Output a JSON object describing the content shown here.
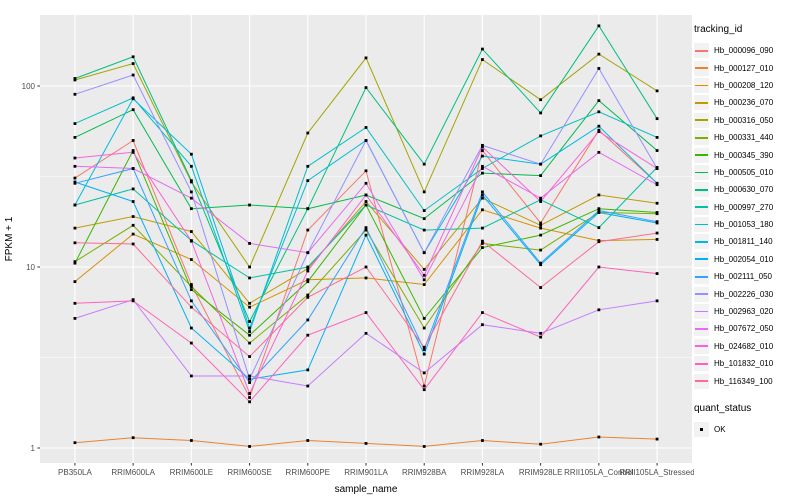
{
  "chart_data": {
    "type": "line",
    "title": "",
    "xlabel": "sample_name",
    "ylabel": "FPKM + 1",
    "y_scale": "log10",
    "y_ticks": [
      1,
      10,
      100
    ],
    "y_tick_labels": [
      "1",
      "10",
      "100"
    ],
    "y_minor_ticks": [
      3.162,
      31.62
    ],
    "ylim": [
      0.83,
      245
    ],
    "grid": true,
    "panel_bg": "#EBEBEB",
    "grid_color": "#FFFFFF",
    "axis_text_color": "#4D4D4D",
    "point_shape": "filled-square",
    "point_color": "#000000",
    "categories": [
      "PB350LA",
      "RRIM600LA",
      "RRIM600LE",
      "RRIM600SE",
      "RRIM600PE",
      "RRIM901LA",
      "RRIM928BA",
      "RRIM928LA",
      "RRIM928LE",
      "RRII105LA_Control",
      "RRII105LA_Stressed"
    ],
    "legend": {
      "color_title": "tracking_id",
      "shape_title": "quant_status",
      "shape_label": "OK"
    },
    "series": [
      {
        "name": "Hb_000096_090",
        "color": "#F8766D",
        "values": [
          31,
          50,
          8.0,
          1.9,
          16,
          34,
          2.2,
          44,
          17.5,
          57,
          29
        ]
      },
      {
        "name": "Hb_000127_010",
        "color": "#EA8331",
        "values": [
          1.07,
          1.14,
          1.1,
          1.02,
          1.1,
          1.06,
          1.02,
          1.1,
          1.05,
          1.15,
          1.12
        ]
      },
      {
        "name": "Hb_000208_120",
        "color": "#D89000",
        "values": [
          8.3,
          15.2,
          11,
          6.0,
          8.5,
          8.7,
          8.0,
          20.7,
          16.4,
          14,
          14.2
        ]
      },
      {
        "name": "Hb_000236_070",
        "color": "#C09B00",
        "values": [
          16.4,
          19,
          15.7,
          6.3,
          9.8,
          23,
          9.7,
          24,
          17,
          25,
          22.5
        ]
      },
      {
        "name": "Hb_000316_050",
        "color": "#A3A500",
        "values": [
          108,
          133,
          29.5,
          10,
          55,
          143,
          26,
          140,
          84,
          150,
          94
        ]
      },
      {
        "name": "Hb_000331_440",
        "color": "#7CAE00",
        "values": [
          10.7,
          17,
          7.8,
          3.8,
          7.0,
          16,
          4.6,
          13.5,
          12.4,
          20,
          19.7
        ]
      },
      {
        "name": "Hb_000345_390",
        "color": "#39B600",
        "values": [
          10.5,
          44,
          7.5,
          4.2,
          8.3,
          22,
          5.2,
          12.8,
          15,
          21,
          20
        ]
      },
      {
        "name": "Hb_000505_010",
        "color": "#00BB4E",
        "values": [
          52,
          74,
          21,
          22,
          21,
          25,
          18.5,
          33,
          32,
          83,
          44
        ]
      },
      {
        "name": "Hb_000630_070",
        "color": "#00BF7D",
        "values": [
          110,
          145,
          30,
          5.0,
          21,
          98,
          37,
          160,
          71,
          215,
          66
        ]
      },
      {
        "name": "Hb_000997_270",
        "color": "#00C1A3",
        "values": [
          22,
          27,
          14,
          8.7,
          10,
          22,
          16,
          16.4,
          23.5,
          16.5,
          35.5
        ]
      },
      {
        "name": "Hb_001053_180",
        "color": "#00BFC4",
        "values": [
          62,
          86,
          36,
          4.4,
          36,
          59,
          20.5,
          35,
          53,
          72,
          52
        ]
      },
      {
        "name": "Hb_001811_140",
        "color": "#00BAE0",
        "values": [
          22,
          85,
          42,
          4.6,
          30,
          50,
          12,
          41,
          37,
          60,
          29
        ]
      },
      {
        "name": "Hb_002054_010",
        "color": "#00B0F6",
        "values": [
          29.5,
          23,
          4.6,
          2.4,
          2.7,
          15,
          3.3,
          25,
          10.3,
          20,
          17.5
        ]
      },
      {
        "name": "Hb_002111_050",
        "color": "#35A2FF",
        "values": [
          29,
          35,
          6.5,
          2.3,
          5.1,
          16.5,
          3.5,
          26,
          10.5,
          20.5,
          17.8
        ]
      },
      {
        "name": "Hb_002226_030",
        "color": "#9590FF",
        "values": [
          90,
          115,
          26,
          2.4,
          12,
          50,
          12,
          47,
          37,
          125,
          35
        ]
      },
      {
        "name": "Hb_002963_020",
        "color": "#C77CFF",
        "values": [
          5.2,
          6.6,
          2.5,
          2.5,
          2.2,
          4.3,
          2.6,
          4.8,
          4.3,
          5.8,
          6.5
        ]
      },
      {
        "name": "Hb_007672_050",
        "color": "#E76BF3",
        "values": [
          36,
          35,
          24,
          13.5,
          12,
          29,
          8.5,
          36,
          24,
          43,
          28.5
        ]
      },
      {
        "name": "Hb_024682_010",
        "color": "#FA62DB",
        "values": [
          40,
          43,
          13.9,
          2.0,
          9.5,
          25,
          9.0,
          46,
          23,
          56,
          35
        ]
      },
      {
        "name": "Hb_101832_010",
        "color": "#FF62BC",
        "values": [
          6.3,
          6.5,
          3.8,
          1.8,
          4.2,
          5.6,
          2.1,
          5.6,
          4.1,
          10,
          9.2
        ]
      },
      {
        "name": "Hb_116349_100",
        "color": "#FF6A98",
        "values": [
          13.6,
          13.4,
          6.0,
          3.2,
          6.8,
          10,
          3.6,
          13.9,
          7.7,
          13.8,
          15.4
        ]
      }
    ]
  }
}
